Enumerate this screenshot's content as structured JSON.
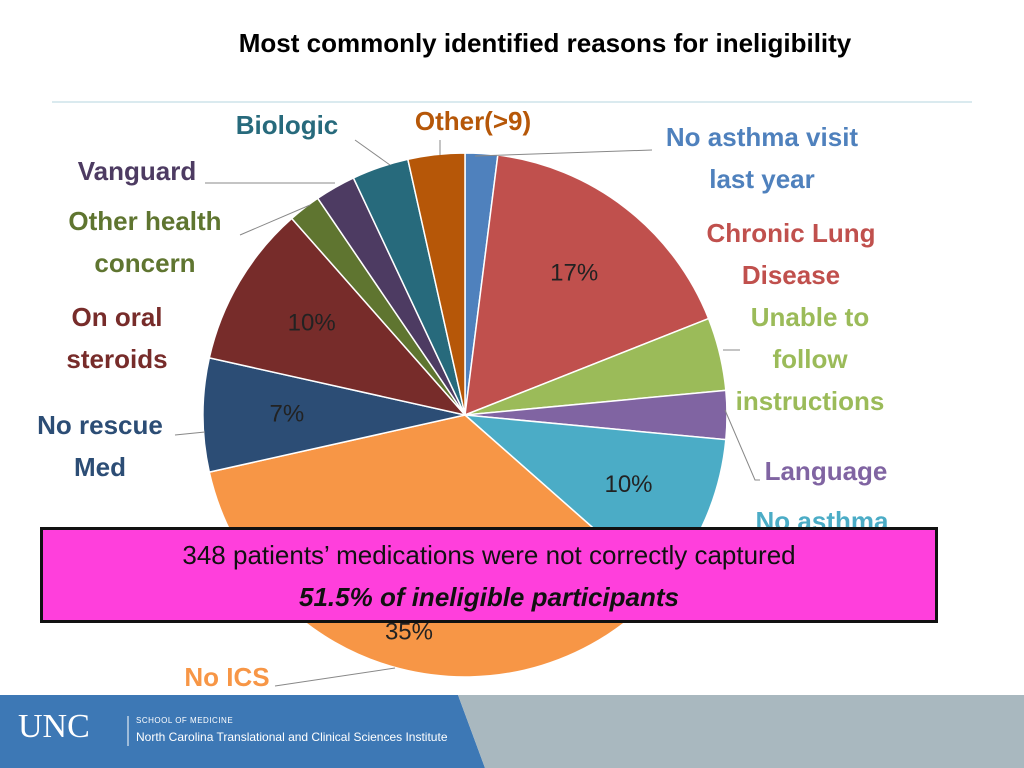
{
  "chart_data": {
    "type": "pie",
    "title": "Most commonly identified reasons for ineligibility",
    "categories": [
      "No asthma visit last year",
      "Chronic Lung Disease",
      "Unable to follow instructions",
      "Language",
      "No asthma",
      "No ICS",
      "No rescue Med",
      "On oral steroids",
      "Other health concern",
      "Vanguard",
      "Biologic",
      "Other(>9)"
    ],
    "values": [
      2,
      17,
      4.5,
      3,
      10,
      35,
      7,
      10,
      2,
      2.5,
      3.5,
      3.5
    ],
    "value_labels": [
      null,
      "17%",
      null,
      null,
      "10%",
      "35%",
      "7%",
      "10%",
      null,
      null,
      null,
      null
    ],
    "colors": [
      "#4f81bd",
      "#c0504d",
      "#9bbb59",
      "#8064a2",
      "#4bacc6",
      "#f79646",
      "#2c4d75",
      "#772c2a",
      "#5f7530",
      "#4d3b62",
      "#276a7c",
      "#b65708"
    ]
  },
  "callout": {
    "line1": "348 patients’ medications were not correctly captured",
    "line2": "51.5% of ineligible participants"
  },
  "footer": {
    "logo": "UNC",
    "school": "SCHOOL OF MEDICINE",
    "institute": "North Carolina Translational and Clinical Sciences Institute"
  }
}
